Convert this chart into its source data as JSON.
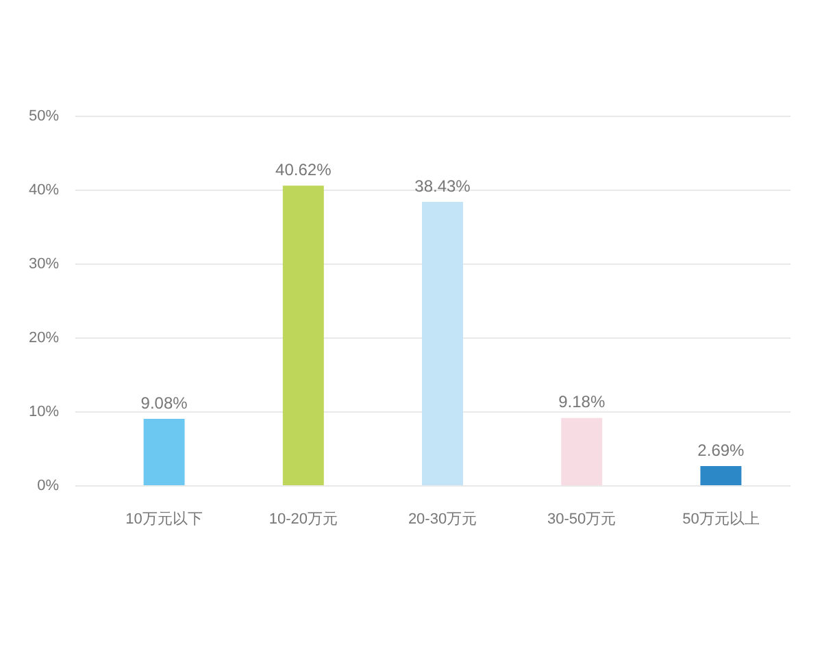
{
  "chart_data": {
    "type": "bar",
    "categories": [
      "10万元以下",
      "10-20万元",
      "20-30万元",
      "30-50万元",
      "50万元以上"
    ],
    "values": [
      9.08,
      40.62,
      38.43,
      9.18,
      2.69
    ],
    "colors": [
      "#6cc8f0",
      "#bed65a",
      "#c2e4f6",
      "#f8dce3",
      "#2d88c8"
    ],
    "value_labels": [
      "9.08%",
      "40.62%",
      "38.43%",
      "9.18%",
      "2.69%"
    ],
    "ylim": [
      0,
      50
    ],
    "yticks": [
      {
        "value": 0,
        "label": "0%"
      },
      {
        "value": 10,
        "label": "10%"
      },
      {
        "value": 20,
        "label": "20%"
      },
      {
        "value": 30,
        "label": "30%"
      },
      {
        "value": 40,
        "label": "40%"
      },
      {
        "value": 50,
        "label": "50%"
      }
    ],
    "grid": "y"
  }
}
